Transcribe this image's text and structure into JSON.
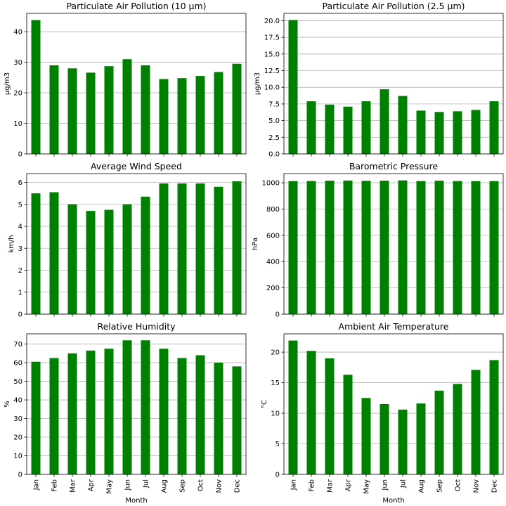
{
  "months": [
    "Jan",
    "Feb",
    "Mar",
    "Apr",
    "May",
    "Jun",
    "Jul",
    "Aug",
    "Sep",
    "Oct",
    "Nov",
    "Dec"
  ],
  "bar_color": "#008000",
  "grid_color": "#b0b0b0",
  "chart_data": [
    {
      "type": "bar",
      "title": "Particulate Air Pollution (10 µm)",
      "ylabel": "µg/m3",
      "xlabel": "",
      "ylim": [
        0,
        46
      ],
      "yticks": [
        0,
        10,
        20,
        30,
        40
      ],
      "ytick_labels": [
        "0",
        "10",
        "20",
        "30",
        "40"
      ],
      "values": [
        43.8,
        29.0,
        28.0,
        26.6,
        28.7,
        31.0,
        29.0,
        24.5,
        24.8,
        25.5,
        26.8,
        29.5
      ],
      "grid": true,
      "show_xticklabels": false
    },
    {
      "type": "bar",
      "title": "Particulate Air Pollution (2.5 µm)",
      "ylabel": "µg/m3",
      "xlabel": "",
      "ylim": [
        0,
        21.1
      ],
      "yticks": [
        0,
        2.5,
        5,
        7.5,
        10,
        12.5,
        15,
        17.5,
        20
      ],
      "ytick_labels": [
        "0.0",
        "2.5",
        "5.0",
        "7.5",
        "10.0",
        "12.5",
        "15.0",
        "17.5",
        "20.0"
      ],
      "values": [
        20.1,
        7.9,
        7.4,
        7.1,
        7.9,
        9.7,
        8.7,
        6.5,
        6.3,
        6.4,
        6.6,
        7.9
      ],
      "grid": true,
      "show_xticklabels": false
    },
    {
      "type": "bar",
      "title": "Average Wind Speed",
      "ylabel": "km/h",
      "xlabel": "",
      "ylim": [
        0,
        6.4
      ],
      "yticks": [
        0,
        1,
        2,
        3,
        4,
        5,
        6
      ],
      "ytick_labels": [
        "0",
        "1",
        "2",
        "3",
        "4",
        "5",
        "6"
      ],
      "values": [
        5.5,
        5.55,
        5.0,
        4.7,
        4.75,
        5.0,
        5.35,
        5.95,
        5.95,
        5.95,
        5.8,
        6.05
      ],
      "grid": true,
      "show_xticklabels": false
    },
    {
      "type": "bar",
      "title": "Barometric Pressure",
      "ylabel": "hPa",
      "xlabel": "",
      "ylim": [
        0,
        1070
      ],
      "yticks": [
        0,
        200,
        400,
        600,
        800,
        1000
      ],
      "ytick_labels": [
        "0",
        "200",
        "400",
        "600",
        "800",
        "1000"
      ],
      "values": [
        1013,
        1013,
        1016,
        1017,
        1015,
        1016,
        1018,
        1013,
        1016,
        1013,
        1013,
        1013
      ],
      "grid": true,
      "show_xticklabels": false
    },
    {
      "type": "bar",
      "title": "Relative Humidity",
      "ylabel": "%",
      "xlabel": "Month",
      "ylim": [
        0,
        75.5
      ],
      "yticks": [
        0,
        10,
        20,
        30,
        40,
        50,
        60,
        70
      ],
      "ytick_labels": [
        "0",
        "10",
        "20",
        "30",
        "40",
        "50",
        "60",
        "70"
      ],
      "values": [
        60.5,
        62.5,
        65.0,
        66.5,
        67.5,
        72.0,
        72.0,
        67.5,
        62.5,
        64.0,
        60.0,
        58.0
      ],
      "grid": true,
      "show_xticklabels": true
    },
    {
      "type": "bar",
      "title": "Ambient Air Temperature",
      "ylabel": "°C",
      "xlabel": "Month",
      "ylim": [
        0,
        23
      ],
      "yticks": [
        0,
        5,
        10,
        15,
        20
      ],
      "ytick_labels": [
        "0",
        "5",
        "10",
        "15",
        "20"
      ],
      "values": [
        21.9,
        20.2,
        19.0,
        16.3,
        12.5,
        11.5,
        10.6,
        11.6,
        13.7,
        14.8,
        17.1,
        18.7
      ],
      "grid": true,
      "show_xticklabels": true
    }
  ]
}
